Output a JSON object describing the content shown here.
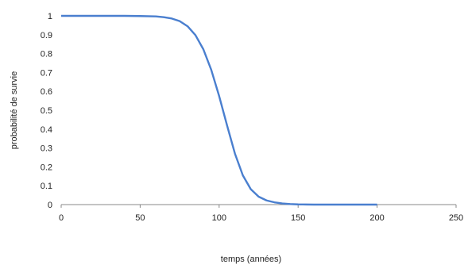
{
  "chart_data": {
    "type": "line",
    "title": "",
    "xlabel": "temps (années)",
    "ylabel": "probabilité de survie",
    "xlim": [
      0,
      250
    ],
    "ylim": [
      0,
      1
    ],
    "x_ticks": [
      "0",
      "50",
      "100",
      "150",
      "200",
      "250"
    ],
    "y_ticks": [
      "0",
      "0.1",
      "0.2",
      "0.3",
      "0.4",
      "0.5",
      "0.6",
      "0.7",
      "0.8",
      "0.9",
      "1"
    ],
    "grid": false,
    "legend": "none",
    "series": [
      {
        "color": "#4a7fcf",
        "x": [
          0,
          20,
          40,
          50,
          60,
          65,
          70,
          75,
          80,
          85,
          90,
          95,
          100,
          105,
          110,
          115,
          120,
          125,
          130,
          135,
          140,
          145,
          150,
          155,
          160,
          170,
          180,
          200
        ],
        "y": [
          1.0,
          1.0,
          1.0,
          0.999,
          0.997,
          0.993,
          0.986,
          0.972,
          0.945,
          0.898,
          0.823,
          0.714,
          0.575,
          0.42,
          0.27,
          0.155,
          0.082,
          0.042,
          0.022,
          0.012,
          0.006,
          0.003,
          0.001,
          0.0005,
          0.0,
          0.0,
          0.0,
          0.0
        ]
      }
    ]
  }
}
